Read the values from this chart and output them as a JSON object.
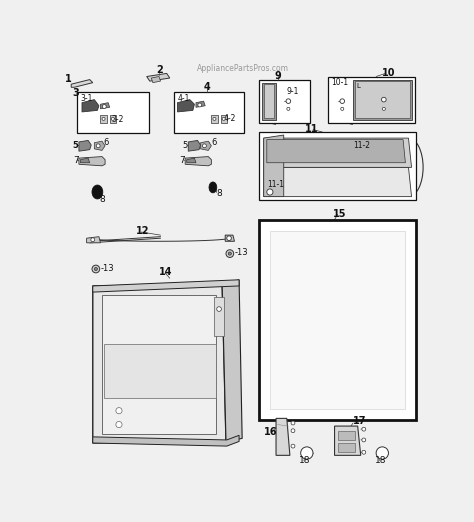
{
  "title": "AppliancePartsPros.com",
  "bg_color": "#f5f5f5",
  "fig_width": 4.74,
  "fig_height": 5.22,
  "dpi": 100
}
